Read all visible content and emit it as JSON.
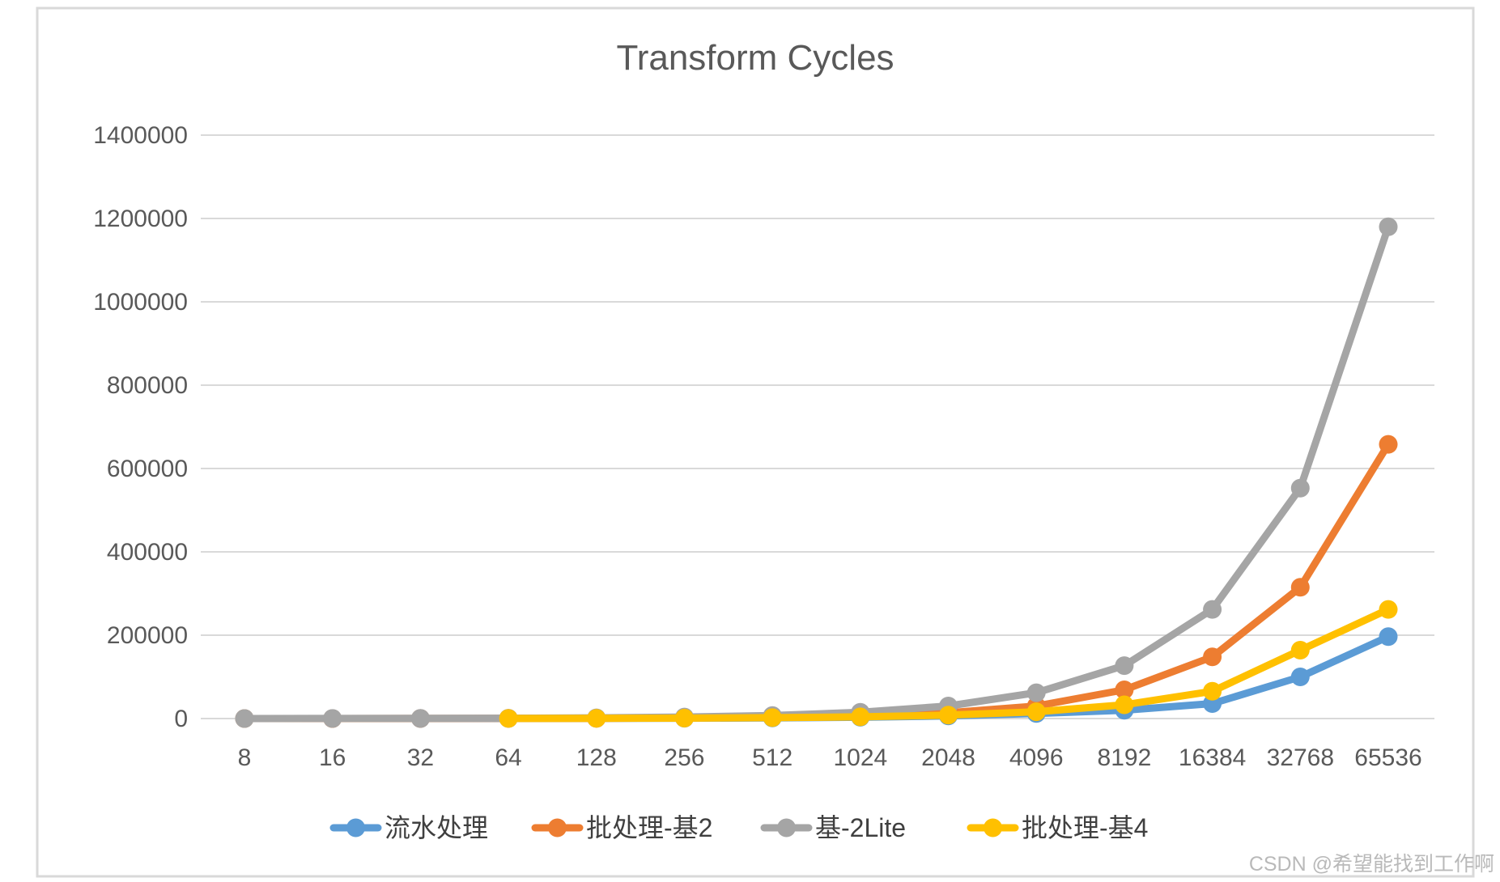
{
  "watermark": "CSDN @希望能找到工作啊",
  "colors": {
    "border": "#d9d9d9",
    "gridline": "#d9d9d9",
    "axis_text": "#595959",
    "title_text": "#595959",
    "legend_text": "#3f3f3f",
    "watermark_text": "#b9b9b9",
    "series_blue": "#5B9BD5",
    "series_orange": "#ED7D31",
    "series_gray": "#A5A5A5",
    "series_yellow": "#FFC000"
  },
  "chart_data": {
    "type": "line",
    "title": "Transform Cycles",
    "xlabel": "",
    "ylabel": "",
    "categories": [
      "8",
      "16",
      "32",
      "64",
      "128",
      "256",
      "512",
      "1024",
      "2048",
      "4096",
      "8192",
      "16384",
      "32768",
      "65536"
    ],
    "y_ticks": [
      "0",
      "200000",
      "400000",
      "600000",
      "800000",
      "1000000",
      "1200000",
      "1400000"
    ],
    "ylim": [
      0,
      1400000
    ],
    "y_tick_step": 200000,
    "grid": true,
    "legend_position": "bottom",
    "marker": "circle",
    "series": [
      {
        "name": "流水处理",
        "color": "#5B9BD5",
        "values": [
          24,
          48,
          96,
          192,
          384,
          768,
          1536,
          3072,
          6144,
          12288,
          20000,
          36000,
          100000,
          196600
        ]
      },
      {
        "name": "批处理-基2",
        "color": "#ED7D31",
        "values": [
          26,
          60,
          140,
          310,
          670,
          1450,
          3100,
          6600,
          14000,
          30000,
          69000,
          148000,
          315000,
          658000
        ]
      },
      {
        "name": "基-2Lite",
        "color": "#A5A5A5",
        "values": [
          90,
          190,
          400,
          850,
          1750,
          3600,
          7400,
          15000,
          30000,
          62000,
          127000,
          262000,
          553000,
          1180000
        ]
      },
      {
        "name": "批处理-基4",
        "color": "#FFC000",
        "values": [
          null,
          null,
          null,
          260,
          510,
          1024,
          2050,
          4100,
          8200,
          16400,
          33000,
          65500,
          164000,
          262000
        ]
      }
    ]
  }
}
